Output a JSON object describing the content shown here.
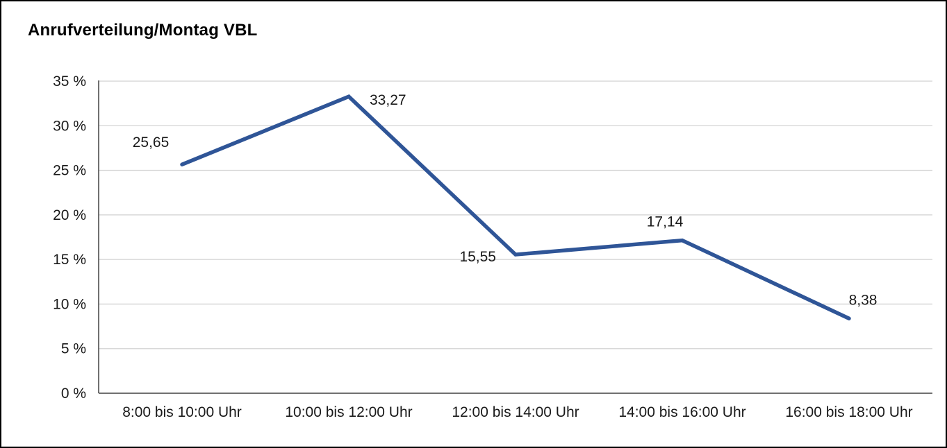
{
  "chart_data": {
    "type": "line",
    "title": "Anrufverteilung/Montag VBL",
    "categories": [
      "8:00 bis 10:00 Uhr",
      "10:00 bis 12:00 Uhr",
      "12:00 bis 14:00 Uhr",
      "14:00 bis 16:00 Uhr",
      "16:00 bis 18:00 Uhr"
    ],
    "values": [
      25.65,
      33.27,
      15.55,
      17.14,
      8.38
    ],
    "data_labels": [
      "25,65",
      "33,27",
      "15,55",
      "17,14",
      "8,38"
    ],
    "label_positions": [
      "above-left",
      "right",
      "below-left",
      "above",
      "above-right"
    ],
    "xlabel": "",
    "ylabel": "",
    "ylim": [
      0,
      35
    ],
    "ytick_step": 5,
    "ytick_suffix": " %",
    "grid": true,
    "legend": "none",
    "line_color": "#2f5597",
    "grid_color": "#d2d2d2",
    "axis_color": "#404040",
    "text_color": "#1a1a1a"
  }
}
